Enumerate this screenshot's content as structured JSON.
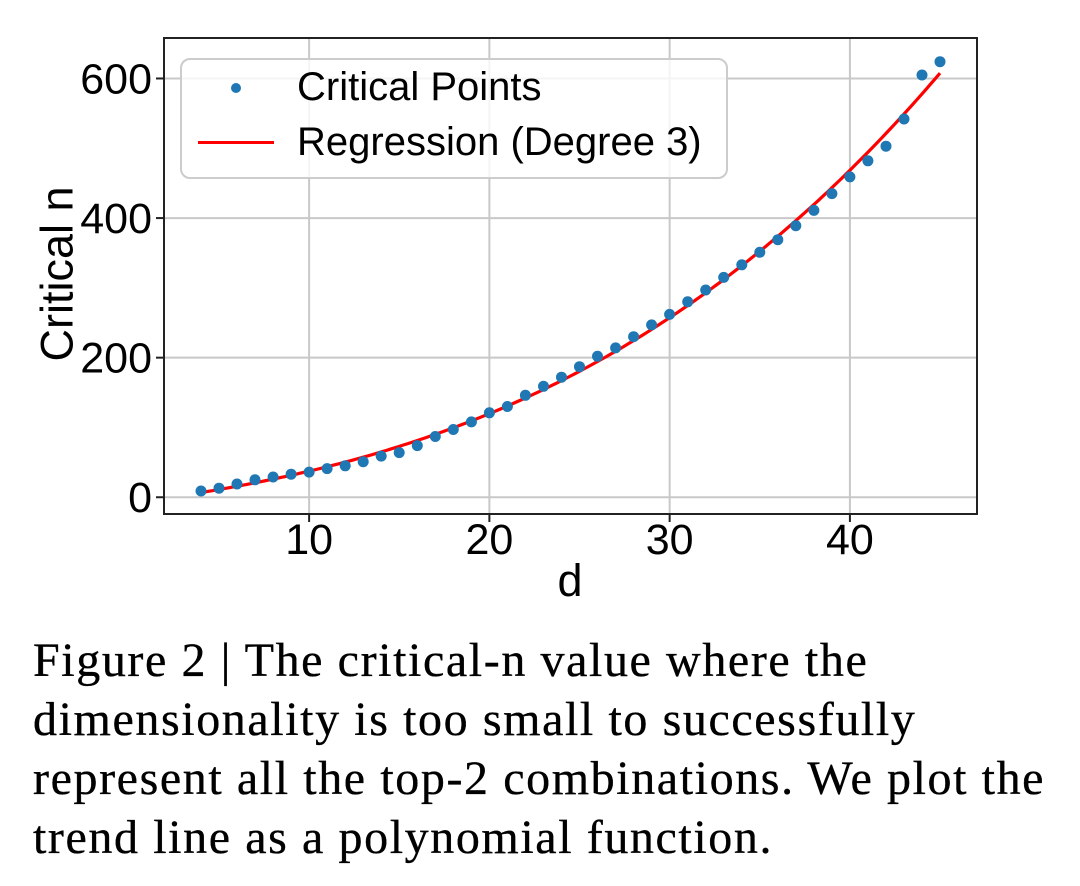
{
  "caption": {
    "lines": [
      "Figure 2 | The critical-n value where the",
      "dimensionality is too small to successfully",
      "represent all the top-2 combinations. We plot the",
      "trend line as a polynomial function."
    ]
  },
  "chart_data": {
    "type": "scatter",
    "title": "",
    "xlabel": "d",
    "ylabel": "Critical n",
    "x": [
      4,
      5,
      6,
      7,
      8,
      9,
      10,
      11,
      12,
      13,
      14,
      15,
      16,
      17,
      18,
      19,
      20,
      21,
      22,
      23,
      24,
      25,
      26,
      27,
      28,
      29,
      30,
      31,
      32,
      33,
      34,
      35,
      36,
      37,
      38,
      39,
      40,
      41,
      42,
      43,
      44,
      45
    ],
    "series": [
      {
        "name": "Critical Points",
        "type": "scatter",
        "color": "#1f77b4",
        "values": [
          9,
          13,
          19,
          25,
          29,
          33,
          36,
          41,
          45,
          51,
          59,
          64,
          74,
          87,
          97,
          108,
          121,
          130,
          146,
          159,
          172,
          187,
          202,
          214,
          230,
          247,
          262,
          280,
          297,
          315,
          333,
          351,
          369,
          389,
          411,
          435,
          459,
          482,
          503,
          542,
          605,
          624
        ]
      },
      {
        "name": "Regression (Degree 3)",
        "type": "line",
        "color": "#ff0000",
        "fit": "polynomial",
        "degree": 3
      }
    ],
    "xticks": [
      10,
      20,
      30,
      40
    ],
    "yticks": [
      0,
      200,
      400,
      600
    ],
    "xlim": [
      1.95,
      47.05
    ],
    "ylim": [
      -24,
      658
    ],
    "grid": true,
    "legend_position": "upper left"
  },
  "style": {
    "grid_color": "#c8c8c8",
    "spine_color": "#222222",
    "tick_color": "#222222",
    "text_color": "#000000"
  }
}
